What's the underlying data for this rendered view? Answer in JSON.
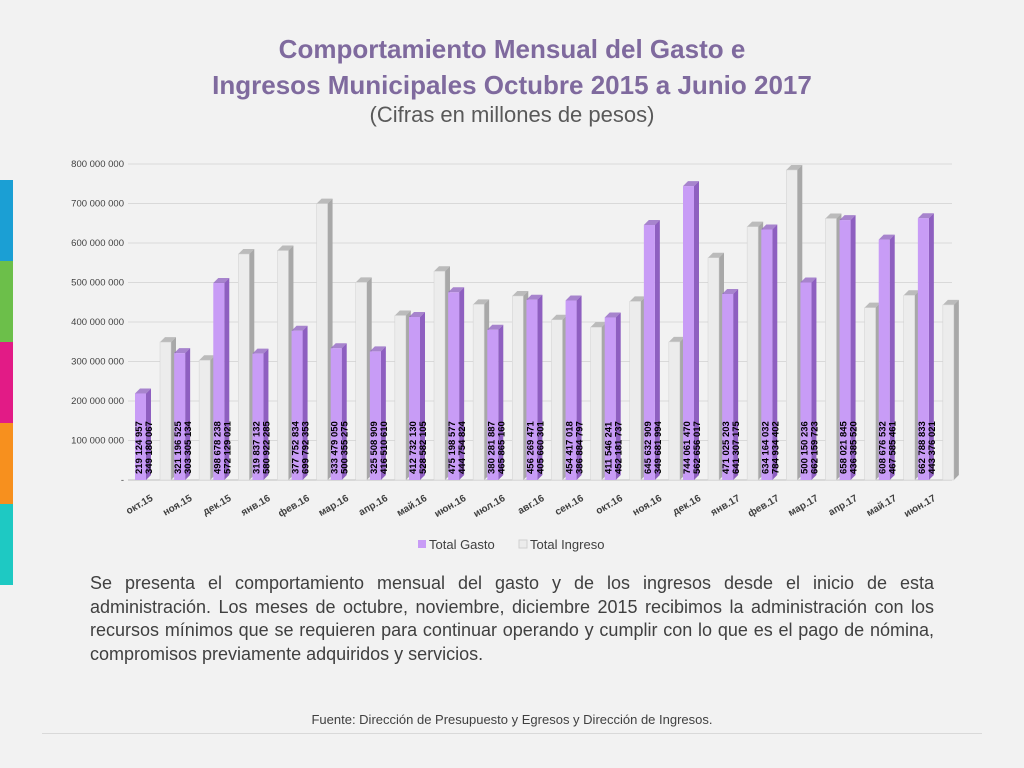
{
  "title_line1": "Comportamiento Mensual del Gasto e",
  "title_line2": "Ingresos Municipales Octubre 2015 a Junio 2017",
  "subtitle": "(Cifras en millones de pesos)",
  "description": "Se presenta el comportamiento mensual del gasto y de los ingresos desde el inicio de esta administración. Los meses de octubre, noviembre, diciembre 2015 recibimos la administración con los recursos mínimos que se requieren para continuar operando y cumplir con lo que es el pago de nómina, compromisos previamente adquiridos y servicios.",
  "source": "Fuente: Dirección de Presupuesto y Egresos y Dirección de Ingresos.",
  "colors": {
    "gasto": "#c89cf6",
    "gasto_side": "#8e5fc0",
    "ingreso": "#ececec",
    "ingreso_side": "#a8a8a8",
    "title": "#7f6a9e",
    "stripes": [
      "#1b9fd4",
      "#6cbf4a",
      "#e21b86",
      "#f7901e",
      "#1ec9c3"
    ]
  },
  "chart_data": {
    "type": "bar",
    "categories": [
      "окт.15",
      "ноя.15",
      "дек.15",
      "янв.16",
      "фев.16",
      "мар.16",
      "апр.16",
      "май.16",
      "июн.16",
      "июл.16",
      "авг.16",
      "сен.16",
      "окт.16",
      "ноя.16",
      "дек.16",
      "янв.17",
      "фев.17",
      "мар.17",
      "апр.17",
      "май.17",
      "июн.17"
    ],
    "series": [
      {
        "name": "Total Gasto",
        "values": [
          219124957,
          321196525,
          498678238,
          319837132,
          377752834,
          333479050,
          325508909,
          412732130,
          475198577,
          380281887,
          456269471,
          454417018,
          411546241,
          645632909,
          744061470,
          471025203,
          634164032,
          500150236,
          658021845,
          608676532,
          662788833
        ],
        "labels": [
          "219 124 957",
          "321 196 525",
          "498 678 238",
          "319 837 132",
          "377 752 834",
          "333 479 050",
          "325 508 909",
          "412 732 130",
          "475 198 577",
          "380 281 887",
          "456 269 471",
          "454 417 018",
          "411 546 241",
          "645 632 909",
          "744 061 470",
          "471 025 203",
          "634 164 032",
          "500 150 236",
          "658 021 845",
          "608 676 532",
          "662 788 833"
        ]
      },
      {
        "name": "Total Ingreso",
        "values": [
          349180067,
          303305134,
          572129021,
          580922285,
          699792353,
          500355275,
          416510610,
          528582105,
          444754824,
          465865160,
          405660301,
          386884797,
          452181737,
          349681994,
          562656017,
          641307175,
          784934402,
          662159723,
          436385520,
          467585461,
          443376021
        ],
        "labels": [
          "349 180 067",
          "303 305 134",
          "572 129 021",
          "580 922 285",
          "699 792 353",
          "500 355 275",
          "416 510 610",
          "528 582 105",
          "444 754 824",
          "465 865 160",
          "405 660 301",
          "386 884 797",
          "452 181 737",
          "349 681 994",
          "562 656 017",
          "641 307 175",
          "784 934 402",
          "662 159 723",
          "436 385 520",
          "467 585 461",
          "443 376 021"
        ]
      }
    ],
    "yticks": [
      0,
      100000000,
      200000000,
      300000000,
      400000000,
      500000000,
      600000000,
      700000000,
      800000000
    ],
    "ytick_labels": [
      "-",
      "100 000 000",
      "200 000 000",
      "300 000 000",
      "400 000 000",
      "500 000 000",
      "600 000 000",
      "700 000 000",
      "800 000 000"
    ],
    "ylim": [
      0,
      800000000
    ],
    "legend": [
      "Total Gasto",
      "Total Ingreso"
    ],
    "legend_position": "bottom",
    "grid": true
  }
}
